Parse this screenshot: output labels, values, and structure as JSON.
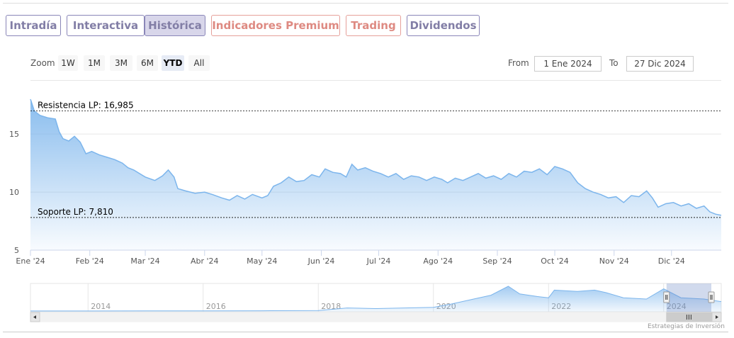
{
  "tabs": [
    {
      "label": "Intradía",
      "style": "purple",
      "active": false
    },
    {
      "label": "Interactiva",
      "style": "purple",
      "active": false
    },
    {
      "label": "Histórica",
      "style": "purple",
      "active": true
    },
    {
      "label": "Indicadores Premium",
      "style": "red",
      "active": false
    },
    {
      "label": "Trading",
      "style": "red",
      "active": false
    },
    {
      "label": "Dividendos",
      "style": "purple",
      "active": false
    }
  ],
  "zoom": {
    "label": "Zoom",
    "buttons": [
      "1W",
      "1M",
      "3M",
      "6M",
      "YTD",
      "All"
    ],
    "selected": "YTD"
  },
  "range": {
    "from_label": "From",
    "from_value": "1 Ene 2024",
    "to_label": "To",
    "to_value": "27 Dic 2024"
  },
  "credits": "Estrategias de Inversión",
  "chart_data": {
    "type": "area",
    "title": "",
    "xlabel": "",
    "ylabel": "",
    "ylim": [
      5,
      18
    ],
    "y_ticks": [
      5,
      10,
      15
    ],
    "x_range": [
      "2024-01-01",
      "2024-12-27"
    ],
    "x_ticks": [
      {
        "date": "2024-01-01",
        "label": "Ene '24"
      },
      {
        "date": "2024-02-01",
        "label": "Feb '24"
      },
      {
        "date": "2024-03-01",
        "label": "Mar '24"
      },
      {
        "date": "2024-04-01",
        "label": "Abr '24"
      },
      {
        "date": "2024-05-01",
        "label": "May '24"
      },
      {
        "date": "2024-06-01",
        "label": "Jun '24"
      },
      {
        "date": "2024-07-01",
        "label": "Jul '24"
      },
      {
        "date": "2024-08-01",
        "label": "Ago '24"
      },
      {
        "date": "2024-09-01",
        "label": "Sep '24"
      },
      {
        "date": "2024-10-01",
        "label": "Oct '24"
      },
      {
        "date": "2024-11-01",
        "label": "Nov '24"
      },
      {
        "date": "2024-12-01",
        "label": "Dic '24"
      }
    ],
    "grid": "horizontal",
    "series": [
      {
        "color": "#7cb5ec",
        "points": [
          [
            "2024-01-01",
            18.0
          ],
          [
            "2024-01-03",
            17.0
          ],
          [
            "2024-01-06",
            16.6
          ],
          [
            "2024-01-10",
            16.4
          ],
          [
            "2024-01-14",
            16.3
          ],
          [
            "2024-01-16",
            15.2
          ],
          [
            "2024-01-18",
            14.6
          ],
          [
            "2024-01-21",
            14.4
          ],
          [
            "2024-01-24",
            14.8
          ],
          [
            "2024-01-27",
            14.3
          ],
          [
            "2024-01-30",
            13.3
          ],
          [
            "2024-02-02",
            13.5
          ],
          [
            "2024-02-06",
            13.2
          ],
          [
            "2024-02-10",
            13.0
          ],
          [
            "2024-02-14",
            12.8
          ],
          [
            "2024-02-18",
            12.5
          ],
          [
            "2024-02-21",
            12.1
          ],
          [
            "2024-02-24",
            11.9
          ],
          [
            "2024-02-27",
            11.6
          ],
          [
            "2024-03-01",
            11.3
          ],
          [
            "2024-03-06",
            11.0
          ],
          [
            "2024-03-10",
            11.4
          ],
          [
            "2024-03-13",
            11.9
          ],
          [
            "2024-03-16",
            11.3
          ],
          [
            "2024-03-18",
            10.3
          ],
          [
            "2024-03-22",
            10.1
          ],
          [
            "2024-03-27",
            9.9
          ],
          [
            "2024-04-01",
            10.0
          ],
          [
            "2024-04-05",
            9.8
          ],
          [
            "2024-04-10",
            9.5
          ],
          [
            "2024-04-14",
            9.3
          ],
          [
            "2024-04-18",
            9.7
          ],
          [
            "2024-04-22",
            9.4
          ],
          [
            "2024-04-26",
            9.8
          ],
          [
            "2024-05-01",
            9.5
          ],
          [
            "2024-05-04",
            9.7
          ],
          [
            "2024-05-07",
            10.5
          ],
          [
            "2024-05-11",
            10.8
          ],
          [
            "2024-05-15",
            11.3
          ],
          [
            "2024-05-19",
            10.9
          ],
          [
            "2024-05-23",
            11.0
          ],
          [
            "2024-05-27",
            11.5
          ],
          [
            "2024-05-31",
            11.3
          ],
          [
            "2024-06-03",
            12.0
          ],
          [
            "2024-06-07",
            11.7
          ],
          [
            "2024-06-11",
            11.6
          ],
          [
            "2024-06-14",
            11.3
          ],
          [
            "2024-06-17",
            12.4
          ],
          [
            "2024-06-20",
            11.9
          ],
          [
            "2024-06-24",
            12.1
          ],
          [
            "2024-06-28",
            11.8
          ],
          [
            "2024-07-02",
            11.6
          ],
          [
            "2024-07-06",
            11.3
          ],
          [
            "2024-07-10",
            11.6
          ],
          [
            "2024-07-14",
            11.1
          ],
          [
            "2024-07-18",
            11.4
          ],
          [
            "2024-07-22",
            11.3
          ],
          [
            "2024-07-26",
            11.0
          ],
          [
            "2024-07-30",
            11.3
          ],
          [
            "2024-08-03",
            11.1
          ],
          [
            "2024-08-06",
            10.8
          ],
          [
            "2024-08-10",
            11.2
          ],
          [
            "2024-08-14",
            11.0
          ],
          [
            "2024-08-18",
            11.3
          ],
          [
            "2024-08-22",
            11.6
          ],
          [
            "2024-08-26",
            11.2
          ],
          [
            "2024-08-30",
            11.4
          ],
          [
            "2024-09-03",
            11.1
          ],
          [
            "2024-09-07",
            11.6
          ],
          [
            "2024-09-11",
            11.3
          ],
          [
            "2024-09-15",
            11.8
          ],
          [
            "2024-09-19",
            11.7
          ],
          [
            "2024-09-23",
            12.0
          ],
          [
            "2024-09-27",
            11.5
          ],
          [
            "2024-10-01",
            12.2
          ],
          [
            "2024-10-05",
            12.0
          ],
          [
            "2024-10-09",
            11.7
          ],
          [
            "2024-10-13",
            10.8
          ],
          [
            "2024-10-17",
            10.3
          ],
          [
            "2024-10-21",
            10.0
          ],
          [
            "2024-10-25",
            9.8
          ],
          [
            "2024-10-29",
            9.5
          ],
          [
            "2024-11-02",
            9.6
          ],
          [
            "2024-11-06",
            9.1
          ],
          [
            "2024-11-10",
            9.7
          ],
          [
            "2024-11-14",
            9.6
          ],
          [
            "2024-11-18",
            10.1
          ],
          [
            "2024-11-21",
            9.5
          ],
          [
            "2024-11-24",
            8.7
          ],
          [
            "2024-11-28",
            9.0
          ],
          [
            "2024-12-02",
            9.1
          ],
          [
            "2024-12-06",
            8.8
          ],
          [
            "2024-12-10",
            9.0
          ],
          [
            "2024-12-14",
            8.6
          ],
          [
            "2024-12-18",
            8.8
          ],
          [
            "2024-12-21",
            8.3
          ],
          [
            "2024-12-24",
            8.1
          ],
          [
            "2024-12-27",
            8.0
          ]
        ]
      }
    ],
    "annotations": [
      {
        "label": "Resistencia LP: 16,985",
        "value": 16.985
      },
      {
        "label": "Soporte LP: 7,810",
        "value": 7.81
      }
    ],
    "navigator": {
      "x_labels": [
        "2014",
        "2016",
        "2018",
        "2020",
        "2022",
        "2024"
      ],
      "x_range": [
        2013,
        2025
      ],
      "selected_range": [
        2024.0,
        2025.0
      ],
      "ylim": [
        0,
        20
      ],
      "points": [
        [
          2013.0,
          0.6
        ],
        [
          2014.0,
          0.6
        ],
        [
          2015.0,
          0.7
        ],
        [
          2016.0,
          0.7
        ],
        [
          2017.0,
          0.8
        ],
        [
          2018.0,
          1.0
        ],
        [
          2018.5,
          3.0
        ],
        [
          2019.0,
          2.5
        ],
        [
          2019.5,
          3.0
        ],
        [
          2020.0,
          3.5
        ],
        [
          2020.3,
          6.0
        ],
        [
          2020.7,
          10.0
        ],
        [
          2021.0,
          13.0
        ],
        [
          2021.3,
          20.0
        ],
        [
          2021.5,
          14.0
        ],
        [
          2021.8,
          12.0
        ],
        [
          2022.0,
          11.0
        ],
        [
          2022.1,
          17.0
        ],
        [
          2022.5,
          16.0
        ],
        [
          2022.8,
          17.0
        ],
        [
          2023.0,
          15.0
        ],
        [
          2023.3,
          11.0
        ],
        [
          2023.7,
          10.0
        ],
        [
          2024.0,
          18.0
        ],
        [
          2024.3,
          11.0
        ],
        [
          2024.7,
          10.0
        ],
        [
          2025.0,
          8.0
        ]
      ]
    }
  }
}
